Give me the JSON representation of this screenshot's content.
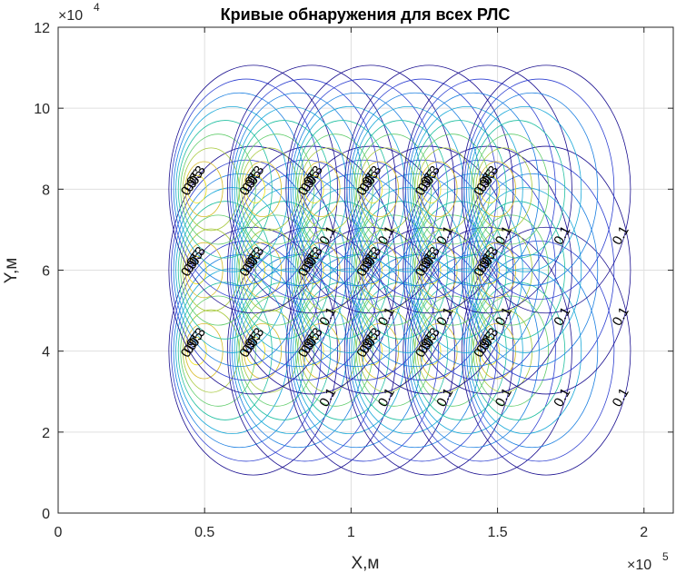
{
  "chart_data": {
    "type": "contour",
    "title": "Кривые обнаружения для всех РЛС",
    "xlabel": "X,м",
    "ylabel": "Y,м",
    "x_exponent_label": "×10",
    "x_exponent_power": "5",
    "y_exponent_label": "×10",
    "y_exponent_power": "4",
    "xlim": [
      0,
      210000
    ],
    "ylim": [
      0,
      120000
    ],
    "x_ticks": [
      0,
      50000,
      100000,
      150000,
      200000
    ],
    "x_tick_labels": [
      "0",
      "0.5",
      "1",
      "1.5",
      "2"
    ],
    "y_ticks": [
      0,
      20000,
      40000,
      60000,
      80000,
      100000,
      120000
    ],
    "y_tick_labels": [
      "0",
      "2",
      "4",
      "6",
      "8",
      "10",
      "12"
    ],
    "grid": true,
    "contour_levels": [
      0.1,
      0.2,
      0.3,
      0.4,
      0.5,
      0.6,
      0.7,
      0.8,
      0.9
    ],
    "radar_x": [
      45000,
      65000,
      85000,
      105000,
      125000,
      145000
    ],
    "radar_y": [
      40000,
      60000,
      80000
    ],
    "max_detection_range": 40000,
    "level_colors": [
      "#1a0f8f",
      "#2d3fd0",
      "#1a7ee0",
      "#18a8d8",
      "#20bfa0",
      "#5fcc6a",
      "#a6c83a",
      "#d8bd2c",
      "#f2e51a"
    ],
    "contour_labels": [
      "0.1",
      "0.2",
      "0.3",
      "0.4",
      "0.5",
      "0.6",
      "0.7",
      "0.8",
      "0.9"
    ]
  }
}
